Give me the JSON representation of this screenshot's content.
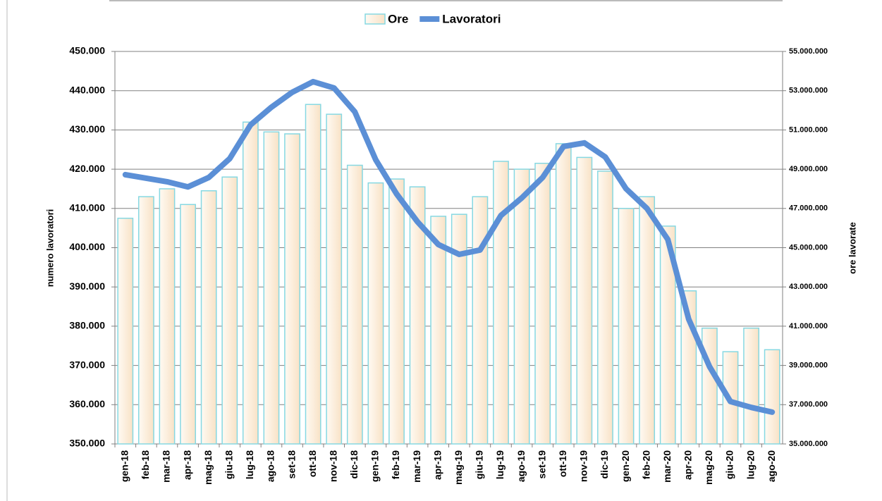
{
  "chart_data": {
    "type": "bar",
    "y_label": "numero lavoratori",
    "y2_label": "ore lavorate",
    "categories": [
      "gen-18",
      "feb-18",
      "mar-18",
      "apr-18",
      "mag-18",
      "giu-18",
      "lug-18",
      "ago-18",
      "set-18",
      "ott-18",
      "nov-18",
      "dic-18",
      "gen-19",
      "feb-19",
      "mar-19",
      "apr-19",
      "mag-19",
      "giu-19",
      "lug-19",
      "ago-19",
      "set-19",
      "ott-19",
      "nov-19",
      "dic-19",
      "gen-20",
      "feb-20",
      "mar-20",
      "apr-20",
      "mag-20",
      "giu-20",
      "lug-20",
      "ago-20"
    ],
    "series": [
      {
        "name": "Ore",
        "type": "bar",
        "axis": "y2",
        "color": "#fbe9d2",
        "edge_color": "#86d8e2",
        "values": [
          46500000,
          47600000,
          48000000,
          47200000,
          47900000,
          48600000,
          51400000,
          50900000,
          50800000,
          52300000,
          51800000,
          49200000,
          48300000,
          48500000,
          48100000,
          46600000,
          46700000,
          47600000,
          49400000,
          49000000,
          49300000,
          50300000,
          49600000,
          48900000,
          47000000,
          47600000,
          46100000,
          42800000,
          40900000,
          39700000,
          40900000,
          39800000
        ]
      },
      {
        "name": "Lavoratori",
        "type": "line",
        "color": "#5b8fd6",
        "values": [
          418600,
          417700,
          416800,
          415500,
          417900,
          422700,
          431300,
          435800,
          439600,
          442300,
          440700,
          434600,
          422400,
          413700,
          406600,
          400800,
          398300,
          399400,
          408200,
          412700,
          417900,
          425800,
          426700,
          423100,
          415000,
          410000,
          402100,
          381800,
          369700,
          360800,
          359300,
          358100
        ]
      }
    ],
    "ylim": [
      350000,
      450000
    ],
    "yticks": [
      {
        "value": 350000,
        "label": "350.000"
      },
      {
        "value": 360000,
        "label": "360.000"
      },
      {
        "value": 370000,
        "label": "370.000"
      },
      {
        "value": 380000,
        "label": "380.000"
      },
      {
        "value": 390000,
        "label": "390.000"
      },
      {
        "value": 400000,
        "label": "400.000"
      },
      {
        "value": 410000,
        "label": "410.000"
      },
      {
        "value": 420000,
        "label": "420.000"
      },
      {
        "value": 430000,
        "label": "430.000"
      },
      {
        "value": 440000,
        "label": "440.000"
      },
      {
        "value": 450000,
        "label": "450.000"
      }
    ],
    "y2lim": [
      35000000,
      55000000
    ],
    "y2ticks": [
      {
        "value": 35000000,
        "label": "35.000.000"
      },
      {
        "value": 37000000,
        "label": "37.000.000"
      },
      {
        "value": 39000000,
        "label": "39.000.000"
      },
      {
        "value": 41000000,
        "label": "41.000.000"
      },
      {
        "value": 43000000,
        "label": "43.000.000"
      },
      {
        "value": 45000000,
        "label": "45.000.000"
      },
      {
        "value": 47000000,
        "label": "47.000.000"
      },
      {
        "value": 49000000,
        "label": "49.000.000"
      },
      {
        "value": 51000000,
        "label": "51.000.000"
      },
      {
        "value": 53000000,
        "label": "53.000.000"
      },
      {
        "value": 55000000,
        "label": "55.000.000"
      }
    ],
    "grid": true,
    "legend": "top"
  }
}
